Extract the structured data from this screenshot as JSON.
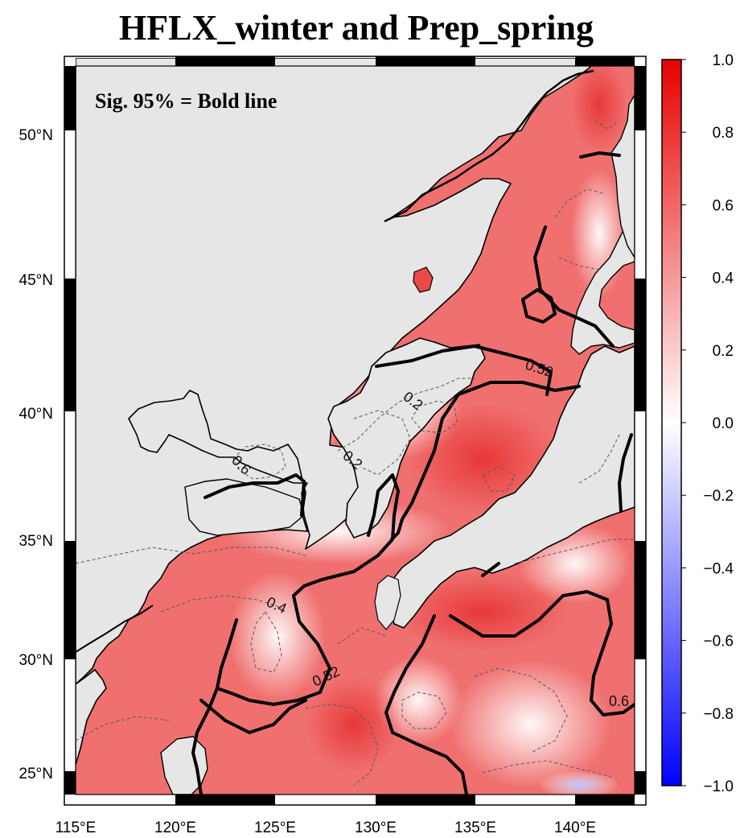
{
  "title": "HFLX_winter and Prep_spring",
  "annotation": "Sig. 95% = Bold line",
  "map": {
    "lon_ticks": [
      "115°E",
      "120°E",
      "125°E",
      "130°E",
      "135°E",
      "140°E"
    ],
    "lat_ticks": [
      "50°N",
      "45°N",
      "40°N",
      "35°N",
      "30°N",
      "25°N"
    ],
    "contour_labels": [
      "0.52",
      "0.2",
      "0.2",
      "0.6",
      "0.4",
      "0.52",
      "0.6"
    ],
    "land_color": "#e6e6e6",
    "ocean_field": "positive correlation (red)"
  },
  "colorbar": {
    "ticks": [
      "1.0",
      "0.8",
      "0.6",
      "0.4",
      "0.2",
      "0.0",
      "−0.2",
      "−0.4",
      "−0.6",
      "−0.8",
      "−1.0"
    ],
    "colors": {
      "max": "#e80000",
      "mid": "#ffffff",
      "min": "#0000ff"
    }
  }
}
